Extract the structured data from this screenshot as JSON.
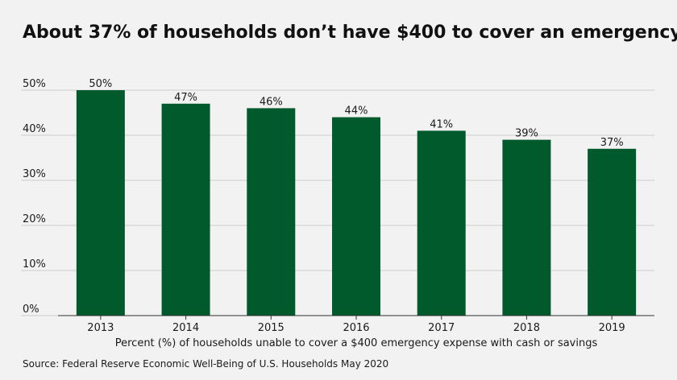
{
  "chart_data": {
    "type": "bar",
    "title": "About 37% of households don’t have $400 to cover an emergency",
    "xlabel": "Percent (%) of households unable to cover a $400 emergency expense with cash or savings",
    "ylabel": "",
    "categories": [
      "2013",
      "2014",
      "2015",
      "2016",
      "2017",
      "2018",
      "2019"
    ],
    "values": [
      50,
      47,
      46,
      44,
      41,
      39,
      37
    ],
    "value_labels": [
      "50%",
      "47%",
      "46%",
      "44%",
      "41%",
      "39%",
      "37%"
    ],
    "ylim": [
      0,
      50
    ],
    "yticks": [
      0,
      10,
      20,
      30,
      40,
      50
    ],
    "ytick_labels": [
      "0%",
      "10%",
      "20%",
      "30%",
      "40%",
      "50%"
    ],
    "grid": true,
    "bar_color": "#005a2b",
    "grid_color": "#cccccc",
    "axis_color": "#333333"
  },
  "source": "Source: Federal Reserve Economic Well-Being of U.S. Households May 2020"
}
